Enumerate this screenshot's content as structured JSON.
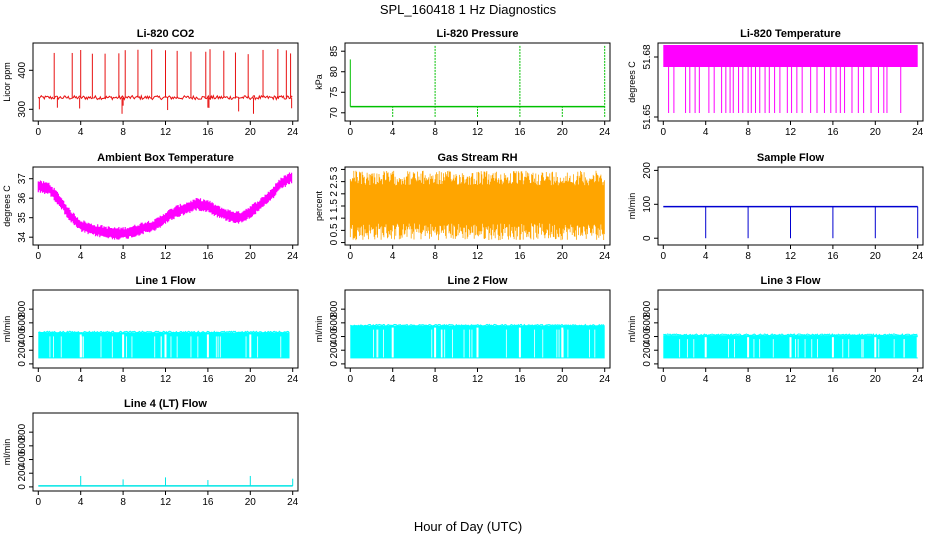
{
  "figure": {
    "title": "SPL_160418  1 Hz Diagnostics",
    "xlabel": "Hour of Day (UTC)"
  },
  "chart_data": [
    {
      "id": "co2",
      "type": "line",
      "title": "Li-820 CO2",
      "ylabel": "Licor ppm",
      "color": "#e81010",
      "xlim": [
        -0.5,
        24.5
      ],
      "ylim": [
        270,
        470
      ],
      "yticks": [
        300,
        400
      ],
      "xticks": [
        0,
        4,
        8,
        12,
        16,
        20,
        24
      ],
      "baseline": 330,
      "pattern": "spikes",
      "spikes_up": [
        1.5,
        3.2,
        4.0,
        5.1,
        6.3,
        7.6,
        8.2,
        9.4,
        10.7,
        12.0,
        13.1,
        14.4,
        15.8,
        16.2,
        17.5,
        18.6,
        19.8,
        21.2,
        22.6,
        23.4,
        23.8
      ],
      "spike_up_top": 455,
      "spikes_down": [
        0.1,
        1.8,
        3.9,
        7.9,
        8.0,
        12.2,
        16.0,
        16.1,
        18.9,
        20.3,
        23.9
      ],
      "spike_down_bottom": 285
    },
    {
      "id": "pressure",
      "type": "line",
      "title": "Li-820 Pressure",
      "ylabel": "kPa",
      "color": "#00c000",
      "xlim": [
        -0.5,
        24.5
      ],
      "ylim": [
        68,
        87
      ],
      "yticks": [
        70,
        75,
        80,
        85
      ],
      "xticks": [
        0,
        4,
        8,
        12,
        16,
        20,
        24
      ],
      "baseline": 71.5,
      "pattern": "vlines",
      "start_value": 83,
      "vlines": [
        [
          4,
          69,
          71.5
        ],
        [
          8,
          69,
          86.5
        ],
        [
          12,
          69,
          71.5
        ],
        [
          16,
          69,
          86.5
        ],
        [
          20,
          69,
          71.5
        ],
        [
          24,
          69,
          86.5
        ]
      ]
    },
    {
      "id": "licor_temp",
      "type": "band",
      "title": "Li-820 Temperature",
      "ylabel": "degrees C",
      "color": "#ff00ff",
      "xlim": [
        -0.5,
        24.5
      ],
      "ylim": [
        51.648,
        51.687
      ],
      "yticks": [
        51.65,
        51.68
      ],
      "xticks": [
        0,
        4,
        8,
        12,
        16,
        20,
        24
      ],
      "band_low": 51.675,
      "band_high": 51.686,
      "drop_low": 51.652,
      "drops": [
        0.5,
        1.0,
        2.1,
        2.5,
        3.0,
        3.4,
        4.3,
        4.8,
        5.5,
        5.9,
        6.3,
        6.6,
        7.1,
        7.5,
        8.0,
        8.3,
        8.7,
        9.1,
        9.6,
        10.0,
        10.5,
        11.0,
        11.7,
        12.1,
        12.6,
        13.1,
        13.9,
        14.5,
        15.2,
        15.8,
        16.3,
        16.7,
        17.1,
        17.8,
        18.4,
        18.9,
        19.6,
        20.3,
        20.8,
        21.1,
        22.4
      ]
    },
    {
      "id": "box_temp",
      "type": "band",
      "title": "Ambient Box Temperature",
      "ylabel": "degrees C",
      "color": "#ff00ff",
      "xlim": [
        -0.5,
        24.5
      ],
      "ylim": [
        33.6,
        37.6
      ],
      "yticks": [
        34,
        35,
        36,
        37
      ],
      "xticks": [
        0,
        4,
        8,
        12,
        16,
        20,
        24
      ],
      "center_x": [
        0,
        1,
        2,
        3,
        4,
        5,
        6,
        7,
        8,
        9,
        10,
        11,
        12,
        13,
        14,
        15,
        16,
        17,
        18,
        19,
        20,
        21,
        22,
        23,
        24
      ],
      "center_y": [
        36.6,
        36.5,
        35.9,
        35.1,
        34.6,
        34.4,
        34.3,
        34.2,
        34.2,
        34.3,
        34.5,
        34.6,
        35.0,
        35.3,
        35.5,
        35.7,
        35.6,
        35.3,
        35.1,
        35.0,
        35.3,
        35.7,
        36.2,
        36.8,
        37.1
      ],
      "band_half": 0.3
    },
    {
      "id": "rh",
      "type": "band",
      "title": "Gas Stream RH",
      "ylabel": "percent",
      "color": "#ffa500",
      "xlim": [
        -0.5,
        24.5
      ],
      "ylim": [
        -0.1,
        3.1
      ],
      "yticks": [
        0.0,
        0.5,
        1.0,
        1.5,
        2.0,
        2.5,
        3.0
      ],
      "xticks": [
        0,
        4,
        8,
        12,
        16,
        20,
        24
      ],
      "band_low": 0.4,
      "band_high": 2.7,
      "noise": true
    },
    {
      "id": "sample_flow",
      "type": "line",
      "title": "Sample Flow",
      "ylabel": "ml/min",
      "color": "#0000d0",
      "xlim": [
        -0.5,
        24.5
      ],
      "ylim": [
        -20,
        210
      ],
      "yticks": [
        0,
        100,
        200
      ],
      "xticks": [
        0,
        4,
        8,
        12,
        16,
        20,
        24
      ],
      "baseline": 93,
      "pattern": "vlines",
      "vlines": [
        [
          4,
          0,
          93
        ],
        [
          8,
          0,
          93
        ],
        [
          12,
          0,
          93
        ],
        [
          16,
          0,
          93
        ],
        [
          20,
          0,
          93
        ],
        [
          24,
          0,
          93
        ]
      ]
    },
    {
      "id": "line1",
      "type": "band",
      "title": "Line 1 Flow",
      "ylabel": "ml/min",
      "color": "#00ffff",
      "xlim": [
        -0.5,
        24.5
      ],
      "ylim": [
        -60,
        1080
      ],
      "yticks": [
        0,
        200,
        400,
        600,
        800
      ],
      "xticks": [
        0,
        4,
        8,
        12,
        16,
        20,
        24
      ],
      "band_low": 80,
      "band_high": 460,
      "gaps": [
        4,
        8,
        12,
        16,
        20,
        24
      ],
      "band_end": 23.7
    },
    {
      "id": "line2",
      "type": "band",
      "title": "Line 2 Flow",
      "ylabel": "ml/min",
      "color": "#00ffff",
      "xlim": [
        -0.5,
        24.5
      ],
      "ylim": [
        -60,
        1080
      ],
      "yticks": [
        0,
        200,
        400,
        600,
        800
      ],
      "xticks": [
        0,
        4,
        8,
        12,
        16,
        20,
        24
      ],
      "band_low": 80,
      "band_high": 560,
      "gaps": [
        4,
        8,
        12,
        16,
        20
      ],
      "band_end": 24
    },
    {
      "id": "line3",
      "type": "band",
      "title": "Line 3 Flow",
      "ylabel": "ml/min",
      "color": "#00ffff",
      "xlim": [
        -0.5,
        24.5
      ],
      "ylim": [
        -60,
        1080
      ],
      "yticks": [
        0,
        200,
        400,
        600,
        800
      ],
      "xticks": [
        0,
        4,
        8,
        12,
        16,
        20,
        24
      ],
      "band_low": 80,
      "band_high": 420,
      "gaps": [
        4,
        8,
        12,
        16,
        20,
        24
      ],
      "band_end": 24
    },
    {
      "id": "line4",
      "type": "line",
      "title": "Line 4 (LT) Flow",
      "ylabel": "ml/min",
      "color": "#00e5e5",
      "xlim": [
        -0.5,
        24.5
      ],
      "ylim": [
        -60,
        1080
      ],
      "yticks": [
        0,
        200,
        400,
        600,
        800
      ],
      "xticks": [
        0,
        4,
        8,
        12,
        16,
        20,
        24
      ],
      "baseline": 15,
      "pattern": "vlines",
      "vlines": [
        [
          4,
          15,
          160
        ],
        [
          8,
          15,
          110
        ],
        [
          12,
          15,
          140
        ],
        [
          16,
          15,
          100
        ],
        [
          20,
          15,
          160
        ],
        [
          24,
          15,
          120
        ]
      ]
    }
  ]
}
